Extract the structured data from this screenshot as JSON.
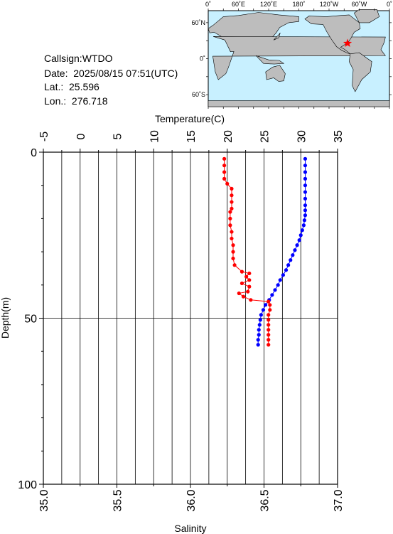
{
  "station": {
    "callsign_line": "Callsign:WTDO",
    "date_line": "Date:  2025/08/15 07:51(UTC)",
    "lat_line": "Lat.:  25.596",
    "lon_line": "Lon.:  276.718"
  },
  "map": {
    "top_labels": [
      "0˚",
      "60˚E",
      "120˚E",
      "180˚",
      "120˚W",
      "60˚W",
      "0˚"
    ],
    "left_labels": [
      "60˚N",
      "0˚",
      "60˚S"
    ],
    "marker_lat": 25.596,
    "marker_lon": 276.718,
    "colors": {
      "ocean": "#c8f0ff",
      "land": "#bdbdbd",
      "marker": "#ff0000"
    }
  },
  "chart_data": {
    "type": "line",
    "top_axis": {
      "label": "Temperature(C)",
      "range": [
        -5,
        35
      ],
      "ticks": [
        "-5",
        "0",
        "5",
        "10",
        "15",
        "20",
        "25",
        "30",
        "35"
      ]
    },
    "bottom_axis": {
      "label": "Salinity",
      "range": [
        35.0,
        37.0
      ],
      "ticks": [
        "35.0",
        "35.5",
        "36.0",
        "36.5",
        "37.0"
      ]
    },
    "left_axis": {
      "label": "Depth(m)",
      "range": [
        0,
        100
      ],
      "inverted": true,
      "ticks": [
        "0",
        "50",
        "100"
      ]
    },
    "grid": true,
    "series": [
      {
        "color": "#0000ff",
        "axis": "temperature",
        "points": [
          [
            30.6,
            2
          ],
          [
            30.6,
            4
          ],
          [
            30.6,
            6
          ],
          [
            30.6,
            8
          ],
          [
            30.6,
            10
          ],
          [
            30.6,
            12
          ],
          [
            30.6,
            14
          ],
          [
            30.6,
            16
          ],
          [
            30.6,
            17.5
          ],
          [
            30.6,
            19
          ],
          [
            30.5,
            20.5
          ],
          [
            30.4,
            22
          ],
          [
            30.2,
            23.5
          ],
          [
            30.0,
            25
          ],
          [
            29.8,
            26.5
          ],
          [
            29.5,
            28
          ],
          [
            29.2,
            29.5
          ],
          [
            28.9,
            31
          ],
          [
            28.6,
            32.5
          ],
          [
            28.3,
            34
          ],
          [
            28.0,
            35.5
          ],
          [
            27.6,
            37
          ],
          [
            27.2,
            38.5
          ],
          [
            26.9,
            40
          ],
          [
            26.5,
            41.5
          ],
          [
            26.1,
            43
          ],
          [
            25.7,
            44.5
          ],
          [
            25.2,
            46
          ],
          [
            24.9,
            47.5
          ],
          [
            24.6,
            49
          ],
          [
            24.5,
            50.5
          ],
          [
            24.4,
            52
          ],
          [
            24.3,
            53.5
          ],
          [
            24.3,
            55
          ],
          [
            24.2,
            56.5
          ],
          [
            24.2,
            58
          ]
        ]
      },
      {
        "color": "#ff0000",
        "axis": "salinity",
        "points": [
          [
            36.23,
            2
          ],
          [
            36.23,
            4
          ],
          [
            36.23,
            6
          ],
          [
            36.23,
            8
          ],
          [
            36.25,
            9.5
          ],
          [
            36.28,
            11
          ],
          [
            36.28,
            13
          ],
          [
            36.28,
            15
          ],
          [
            36.28,
            17
          ],
          [
            36.27,
            18
          ],
          [
            36.27,
            20
          ],
          [
            36.27,
            22
          ],
          [
            36.28,
            24
          ],
          [
            36.28,
            26
          ],
          [
            36.29,
            28
          ],
          [
            36.29,
            30
          ],
          [
            36.29,
            32
          ],
          [
            36.3,
            34
          ],
          [
            36.35,
            36
          ],
          [
            36.4,
            36.5
          ],
          [
            36.38,
            37.5
          ],
          [
            36.4,
            38.5
          ],
          [
            36.35,
            39.5
          ],
          [
            36.4,
            40.5
          ],
          [
            36.39,
            42
          ],
          [
            36.33,
            42.5
          ],
          [
            36.36,
            43.5
          ],
          [
            36.41,
            44.5
          ],
          [
            36.53,
            45
          ],
          [
            36.54,
            46
          ],
          [
            36.54,
            47.5
          ],
          [
            36.53,
            49
          ],
          [
            36.53,
            50.5
          ],
          [
            36.53,
            52
          ],
          [
            36.53,
            53.5
          ],
          [
            36.53,
            55
          ],
          [
            36.53,
            56.5
          ],
          [
            36.53,
            58
          ]
        ]
      }
    ]
  }
}
